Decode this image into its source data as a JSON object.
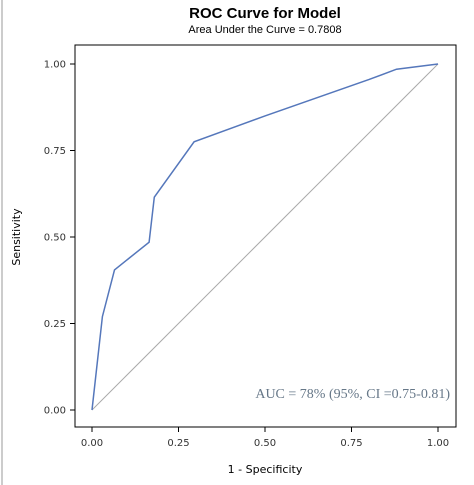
{
  "chart_data": {
    "type": "line",
    "title": "ROC Curve for Model",
    "subtitle": "Area Under the Curve = 0.7808",
    "xlabel": "1 - Specificity",
    "ylabel": "Sensitivity",
    "xlim": [
      0,
      1
    ],
    "ylim": [
      0,
      1
    ],
    "xticks": [
      "0.00",
      "0.25",
      "0.50",
      "0.75",
      "1.00"
    ],
    "yticks": [
      "0.00",
      "0.25",
      "0.50",
      "0.75",
      "1.00"
    ],
    "grid": false,
    "legend": "none",
    "series": [
      {
        "color": "#5577bb",
        "x": [
          0.0,
          0.03,
          0.065,
          0.165,
          0.18,
          0.295,
          0.5,
          0.7,
          0.8,
          0.88,
          1.0
        ],
        "y": [
          0.0,
          0.27,
          0.405,
          0.485,
          0.615,
          0.775,
          0.85,
          0.92,
          0.955,
          0.985,
          1.0
        ]
      }
    ],
    "reference_line": {
      "color": "#aaaaaa",
      "x": [
        0,
        1
      ],
      "y": [
        0,
        1
      ]
    },
    "annotation": "AUC = 78% (95%, CI =0.75-0.81)"
  }
}
